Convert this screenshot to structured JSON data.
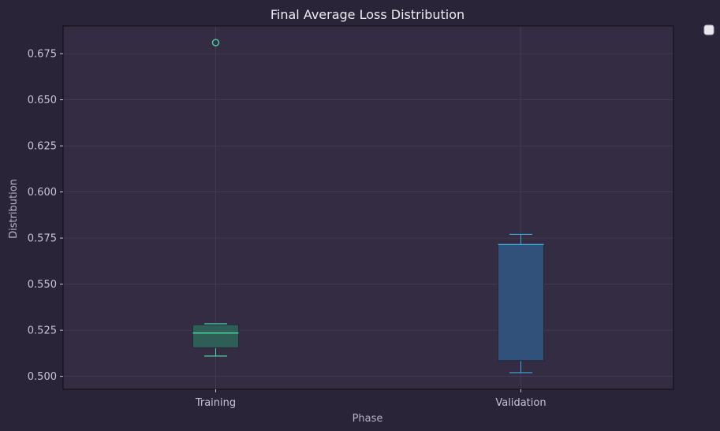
{
  "chart_data": {
    "type": "box",
    "title": "Final Average Loss Distribution",
    "xlabel": "Phase",
    "ylabel": "Distribution",
    "categories": [
      "Training",
      "Validation"
    ],
    "ylim": [
      0.493,
      0.69
    ],
    "yticks": [
      0.5,
      0.525,
      0.55,
      0.575,
      0.6,
      0.625,
      0.65,
      0.675
    ],
    "ytick_labels": [
      "0.500",
      "0.525",
      "0.550",
      "0.575",
      "0.600",
      "0.625",
      "0.650",
      "0.675"
    ],
    "grid": true,
    "legend": "top-right, empty",
    "boxes": [
      {
        "category": "Training",
        "whisker_low": 0.511,
        "q1": 0.5155,
        "median": 0.5235,
        "q3": 0.528,
        "whisker_high": 0.5285,
        "outliers": [
          0.681
        ],
        "color": "#4cd6a0",
        "fill": "#2e5e55"
      },
      {
        "category": "Validation",
        "whisker_low": 0.502,
        "q1": 0.5085,
        "median": 0.5715,
        "q3": 0.5715,
        "whisker_high": 0.577,
        "outliers": [],
        "color": "#3fa7e0",
        "fill": "#31507a"
      }
    ]
  },
  "colors": {
    "background": "#2a2438",
    "plot_area": "#342c42",
    "grid": "#463e56"
  }
}
